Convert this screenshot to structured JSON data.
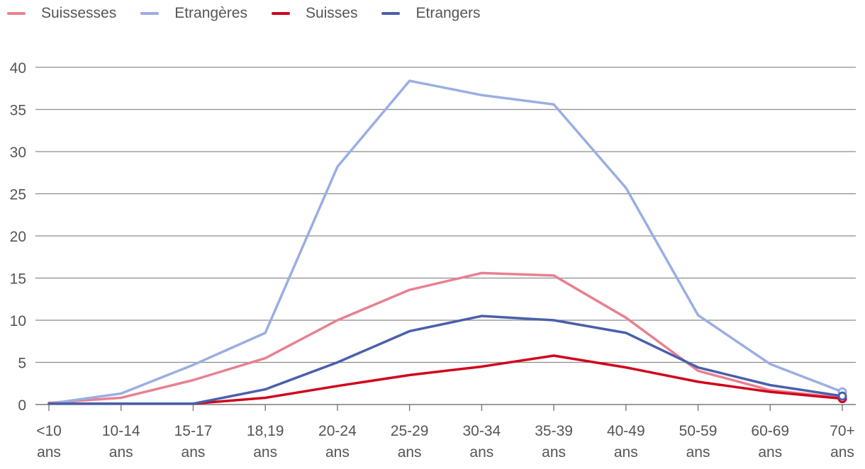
{
  "chart_data": {
    "type": "line",
    "title": "",
    "xlabel": "",
    "ylabel": "",
    "categories": [
      [
        "<10",
        "ans"
      ],
      [
        "10-14",
        "ans"
      ],
      [
        "15-17",
        "ans"
      ],
      [
        "18,19",
        "ans"
      ],
      [
        "20-24",
        "ans"
      ],
      [
        "25-29",
        "ans"
      ],
      [
        "30-34",
        "ans"
      ],
      [
        "35-39",
        "ans"
      ],
      [
        "40-49",
        "ans"
      ],
      [
        "50-59",
        "ans"
      ],
      [
        "60-69",
        "ans"
      ],
      [
        "70+",
        "ans"
      ]
    ],
    "ylim": [
      0,
      40
    ],
    "yticks": [
      0,
      5,
      10,
      15,
      20,
      25,
      30,
      35,
      40
    ],
    "grid": true,
    "legend_position": "top-left",
    "series": [
      {
        "name": "Suissesses",
        "color": "#e9808f",
        "values": [
          0.2,
          0.8,
          2.9,
          5.5,
          10.0,
          13.6,
          15.6,
          15.3,
          10.3,
          4.0,
          1.7,
          0.8
        ]
      },
      {
        "name": "Etrangères",
        "color": "#9aaee2",
        "values": [
          0.1,
          1.3,
          4.7,
          8.5,
          28.2,
          38.4,
          36.7,
          35.6,
          25.7,
          10.6,
          4.8,
          1.5
        ]
      },
      {
        "name": "Suisses",
        "color": "#d0021b",
        "values": [
          0.1,
          0.1,
          0.1,
          0.8,
          2.2,
          3.5,
          4.5,
          5.8,
          4.4,
          2.7,
          1.5,
          0.7
        ]
      },
      {
        "name": "Etrangers",
        "color": "#4a5fab",
        "values": [
          0.1,
          0.1,
          0.1,
          1.8,
          5.0,
          8.7,
          10.5,
          10.0,
          8.5,
          4.4,
          2.3,
          1.0
        ]
      }
    ]
  }
}
